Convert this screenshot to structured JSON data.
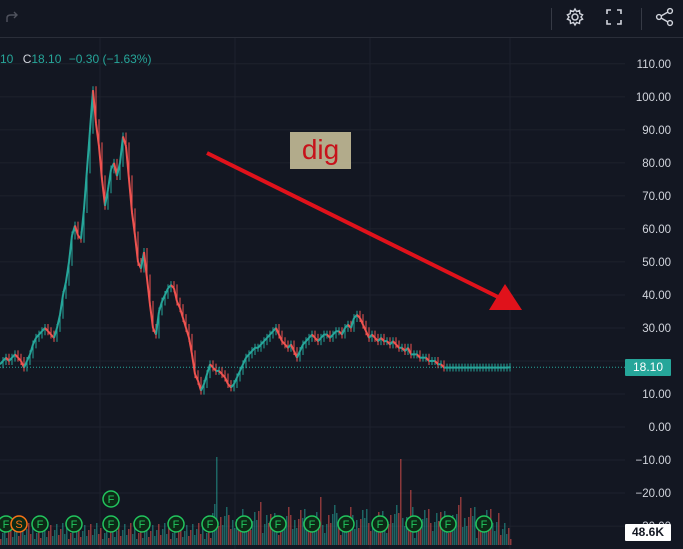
{
  "toolbar": {
    "redo_icon": "redo-arrow-icon",
    "settings_icon": "gear-icon",
    "fullscreen_icon": "fullscreen-icon",
    "share_icon": "share-icon"
  },
  "legend": {
    "partial_value": "10",
    "close_label": "C",
    "close_value": "18.10",
    "change": "−0.30 (−1.63%)"
  },
  "annotation": {
    "text": "dig",
    "arrow_color": "#e0121b"
  },
  "price_axis": {
    "ticks": [
      "110.00",
      "100.00",
      "90.00",
      "80.00",
      "70.00",
      "60.00",
      "50.00",
      "40.00",
      "30.00",
      "20.00",
      "10.00",
      "0.00",
      "−10.00",
      "−20.00",
      "−30.00"
    ],
    "current_price": "18.10",
    "current_price_color": "#26a69a"
  },
  "volume": {
    "badge": "48.6K"
  },
  "event_markers": {
    "labels": [
      "F",
      "S",
      "F",
      "F",
      "F",
      "F",
      "F",
      "F",
      "F",
      "F",
      "F",
      "F",
      "F",
      "F",
      "F",
      "F",
      "F",
      "F"
    ],
    "color": "#22c55e",
    "special_color": "#f97316"
  },
  "colors": {
    "background": "#131722",
    "up": "#26a69a",
    "down": "#ef5350",
    "grid": "#1e222d"
  },
  "chart_data": {
    "type": "line",
    "title": "",
    "xlabel": "",
    "ylabel": "",
    "ylim": [
      -30,
      115
    ],
    "x": [
      0,
      3,
      6,
      9,
      12,
      15,
      18,
      21,
      24,
      27,
      30,
      33,
      36,
      39,
      42,
      45,
      48,
      51,
      54,
      57,
      60,
      63,
      66,
      69,
      72,
      75,
      78,
      81,
      84,
      87,
      90,
      93,
      96,
      99,
      102,
      105,
      108,
      111,
      114,
      117,
      120,
      123,
      126,
      129,
      132,
      135,
      138,
      141,
      144,
      147,
      150,
      153,
      156,
      159,
      162,
      165,
      168,
      171,
      174,
      177,
      180,
      183,
      186,
      189,
      192,
      195,
      198,
      201,
      204,
      207,
      210,
      213,
      216,
      219,
      222,
      225,
      228,
      231,
      234,
      237,
      240,
      243,
      246,
      249,
      252,
      255,
      258,
      261,
      264,
      267,
      270,
      273,
      276,
      279,
      282,
      285,
      288,
      291,
      294,
      297,
      300,
      303,
      306,
      309,
      312,
      315,
      318,
      321,
      324,
      327,
      330,
      333,
      336,
      339,
      342,
      345,
      348,
      351,
      354,
      357,
      360,
      363,
      366,
      369,
      372,
      375,
      378,
      381,
      384,
      387,
      390,
      393,
      396,
      399,
      402,
      405,
      408,
      411,
      414,
      417,
      420,
      423,
      426,
      429,
      432,
      435,
      438,
      441,
      444,
      447,
      450,
      453,
      456,
      459,
      462,
      465,
      468,
      471,
      474,
      477,
      480,
      483,
      486,
      489,
      492,
      495,
      498,
      501,
      504,
      507,
      510
    ],
    "series": [
      {
        "values": [
          19,
          20,
          21,
          20,
          21,
          22,
          21,
          20,
          18,
          20,
          22,
          25,
          27,
          28,
          29,
          30,
          29,
          28,
          27,
          30,
          34,
          40,
          44,
          50,
          58,
          61,
          58,
          57,
          66,
          78,
          90,
          102,
          92,
          85,
          75,
          67,
          72,
          78,
          80,
          76,
          80,
          88,
          85,
          75,
          65,
          58,
          50,
          48,
          53,
          45,
          37,
          30,
          28,
          35,
          38,
          40,
          42,
          43,
          42,
          38,
          36,
          33,
          30,
          27,
          22,
          16,
          14,
          11,
          13,
          16,
          19,
          18,
          17,
          17,
          16,
          15,
          13,
          12,
          13,
          15,
          17,
          19,
          21,
          22,
          23,
          24,
          24,
          25,
          26,
          27,
          28,
          29,
          30,
          28,
          26,
          25,
          24,
          25,
          23,
          21,
          23,
          25,
          26,
          27,
          28,
          27,
          26,
          27,
          28,
          28,
          27,
          28,
          29,
          29,
          28,
          30,
          31,
          30,
          33,
          34,
          33,
          31,
          29,
          27,
          28,
          27,
          26,
          27,
          26,
          26,
          25,
          26,
          25,
          24,
          24,
          23,
          24,
          22,
          22,
          22,
          21,
          21,
          21,
          20,
          20,
          20,
          19,
          19,
          18,
          18,
          18,
          18,
          18,
          18,
          18,
          18,
          18,
          18,
          18,
          18,
          18,
          18,
          18,
          18,
          18,
          18,
          18,
          18,
          18,
          18,
          18.1
        ]
      }
    ]
  }
}
